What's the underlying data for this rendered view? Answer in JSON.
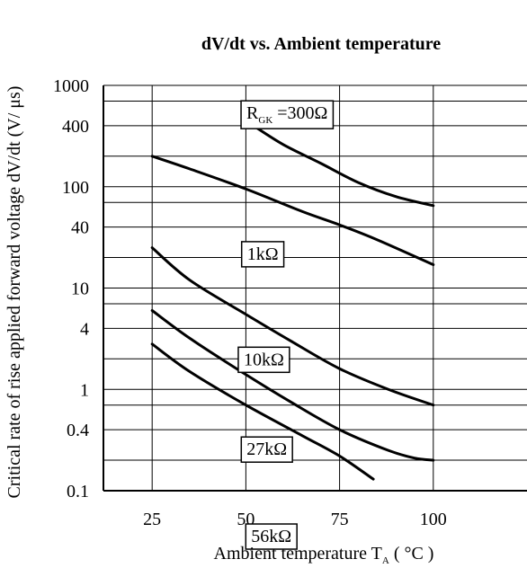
{
  "chart_data": {
    "type": "line",
    "title": "dV/dt  vs. Ambient temperature",
    "xlabel": "Ambient temperature T",
    "xlabel_sub": "A",
    "xlabel_unit": " ( °C )",
    "ylabel": "Critical rate of rise applied forward voltage dV/dt (V/  μs)",
    "x_scale": "linear",
    "y_scale": "log",
    "xlim": [
      12,
      125
    ],
    "ylim": [
      0.1,
      1000
    ],
    "x_ticks": [
      25,
      50,
      75,
      100
    ],
    "x_tick_labels": [
      "25",
      "50",
      "75",
      "100"
    ],
    "y_ticks": [
      0.1,
      0.4,
      1,
      4,
      10,
      40,
      100,
      400,
      1000
    ],
    "y_tick_labels": [
      "0.1",
      "0.4",
      "1",
      "4",
      "10",
      "40",
      "100",
      "400",
      "1000"
    ],
    "grid": true,
    "series": [
      {
        "name": "R",
        "name_sub": "GK",
        "name_suffix": " =300Ω",
        "x": [
          52,
          60,
          70,
          80,
          90,
          100
        ],
        "y": [
          400,
          260,
          170,
          110,
          80,
          65
        ]
      },
      {
        "name": "1kΩ",
        "x": [
          25,
          35,
          50,
          65,
          75,
          85,
          100
        ],
        "y": [
          200,
          150,
          95,
          57,
          42,
          30,
          17
        ]
      },
      {
        "name": "10kΩ",
        "x": [
          25,
          35,
          50,
          62,
          75,
          88,
          100
        ],
        "y": [
          25,
          12,
          5.5,
          3,
          1.6,
          1,
          0.7
        ]
      },
      {
        "name": "27kΩ",
        "x": [
          25,
          35,
          50,
          62,
          75,
          88,
          95,
          100
        ],
        "y": [
          6,
          3.2,
          1.4,
          0.75,
          0.4,
          0.25,
          0.21,
          0.2
        ]
      },
      {
        "name": "56kΩ",
        "x": [
          25,
          35,
          50,
          65,
          75,
          84
        ],
        "y": [
          2.8,
          1.5,
          0.7,
          0.35,
          0.22,
          0.13
        ]
      }
    ]
  }
}
